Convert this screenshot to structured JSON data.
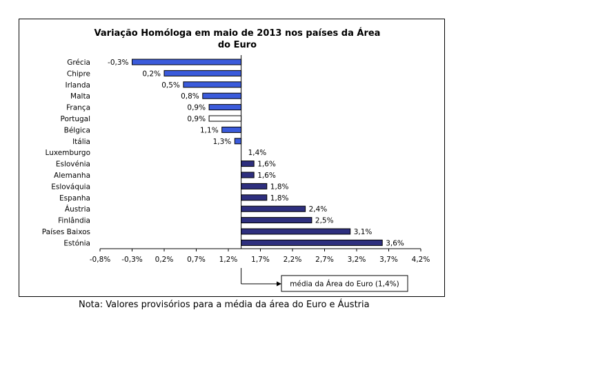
{
  "chart_data": {
    "type": "bar",
    "orientation": "horizontal",
    "title_lines": [
      "Variação Homóloga em maio de 2013 nos países da Área",
      "do Euro"
    ],
    "categories": [
      "Grécia",
      "Chipre",
      "Irlanda",
      "Malta",
      "França",
      "Portugal",
      "Bélgica",
      "Itália",
      "Luxemburgo",
      "Eslovénia",
      "Alemanha",
      "Eslováquia",
      "Espanha",
      "Áustria",
      "Finlândia",
      "Países Baixos",
      "Estónia"
    ],
    "values": [
      -0.3,
      0.2,
      0.5,
      0.8,
      0.9,
      0.9,
      1.1,
      1.3,
      1.4,
      1.6,
      1.6,
      1.8,
      1.8,
      2.4,
      2.5,
      3.1,
      3.6
    ],
    "data_labels": [
      "-0,3%",
      "0,2%",
      "0,5%",
      "0,8%",
      "0,9%",
      "0,9%",
      "1,1%",
      "1,3%",
      "1,4%",
      "1,6%",
      "1,6%",
      "1,8%",
      "1,8%",
      "2,4%",
      "2,5%",
      "3,1%",
      "3,6%"
    ],
    "baseline": 1.4,
    "xlim": [
      -0.8,
      4.2
    ],
    "ticks": [
      -0.8,
      -0.3,
      0.2,
      0.7,
      1.2,
      1.7,
      2.2,
      2.7,
      3.2,
      3.7,
      4.2
    ],
    "tick_labels": [
      "-0,8%",
      "-0,3%",
      "0,2%",
      "0,7%",
      "1,2%",
      "1,7%",
      "2,2%",
      "2,7%",
      "3,2%",
      "3,7%",
      "4,2%"
    ],
    "highlight_category": "Portugal",
    "annotation": "média da Área do Euro (1,4%)",
    "colors": {
      "below_average": "#3B5BDB",
      "above_average": "#2E2F7E",
      "highlight_fill": "#ffffff",
      "bar_stroke": "#000000"
    },
    "grid": false
  },
  "note": "Nota: Valores provisórios para a média da área do Euro e Áustria"
}
